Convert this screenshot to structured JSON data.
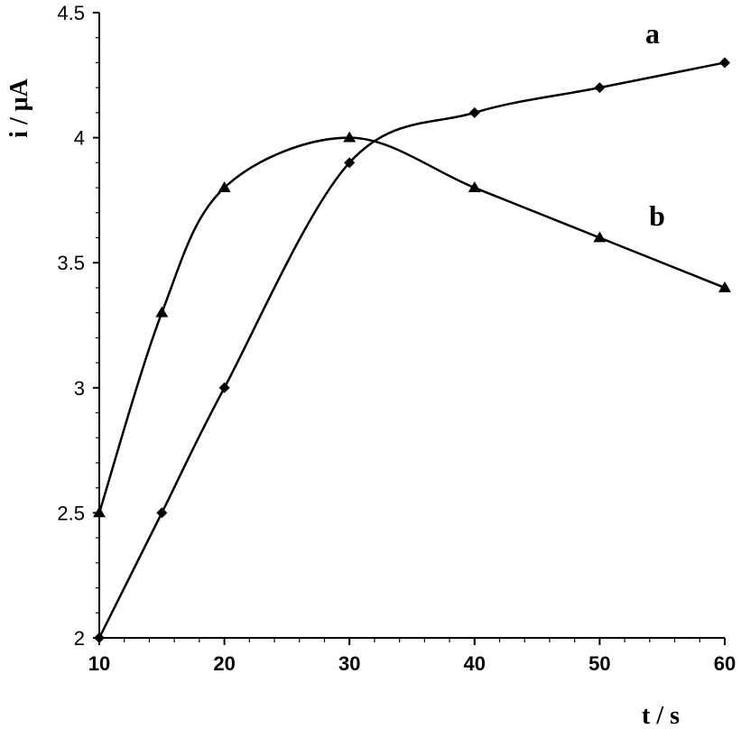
{
  "chart_data": {
    "type": "line",
    "title": "",
    "xlabel": "t / s",
    "ylabel": "i / μA",
    "xlim": [
      10,
      60
    ],
    "ylim": [
      2,
      4.5
    ],
    "xticks": [
      "10",
      "20",
      "30",
      "40",
      "50",
      "60"
    ],
    "yticks": [
      "2",
      "2.5",
      "3",
      "3.5",
      "4",
      "4.5"
    ],
    "grid": false,
    "series": [
      {
        "name": "a",
        "marker": "diamond",
        "x": [
          10,
          15,
          20,
          30,
          40,
          50,
          60
        ],
        "y": [
          2.0,
          2.5,
          3.0,
          3.9,
          4.1,
          4.2,
          4.3
        ]
      },
      {
        "name": "b",
        "marker": "triangle",
        "x": [
          10,
          15,
          20,
          30,
          40,
          50,
          60
        ],
        "y": [
          2.5,
          3.3,
          3.8,
          4.0,
          3.8,
          3.6,
          3.4
        ]
      }
    ],
    "color": "#000000"
  }
}
